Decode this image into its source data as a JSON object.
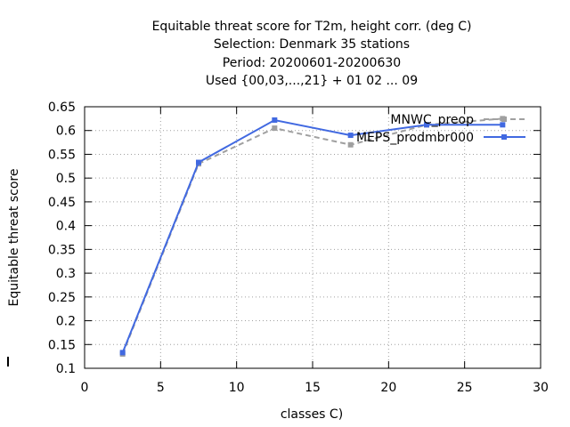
{
  "chart_data": {
    "type": "line",
    "title_lines": [
      "Equitable threat score  for T2m, height corr. (deg C)",
      "Selection: Denmark     35 stations",
      "Period: 20200601-20200630",
      "Used {00,03,...,21} + 01 02 ... 09"
    ],
    "xlabel": "classes C)",
    "ylabel": "Equitable threat score",
    "xlim": [
      0,
      30
    ],
    "ylim": [
      0.1,
      0.65
    ],
    "xticks": [
      0,
      5,
      10,
      15,
      20,
      25,
      30
    ],
    "yticks": [
      0.1,
      0.15,
      0.2,
      0.25,
      0.3,
      0.35,
      0.4,
      0.45,
      0.5,
      0.55,
      0.6,
      0.65
    ],
    "xtick_labels": [
      "0",
      "5",
      "10",
      "15",
      "20",
      "25",
      "30"
    ],
    "ytick_labels": [
      "0.1",
      "0.15",
      "0.2",
      "0.25",
      "0.3",
      "0.35",
      "0.4",
      "0.45",
      "0.5",
      "0.55",
      "0.6",
      "0.65"
    ],
    "grid": true,
    "legend_position": "top-right",
    "series": [
      {
        "name": "MNWC_preop",
        "color": "#a0a0a0",
        "dashed": true,
        "x": [
          2.5,
          7.5,
          12.5,
          17.5,
          22.5,
          27.5
        ],
        "values": [
          0.13,
          0.53,
          0.605,
          0.57,
          0.612,
          0.625
        ]
      },
      {
        "name": "MEPS_prodmbr000",
        "color": "#4169e1",
        "dashed": false,
        "x": [
          2.5,
          7.5,
          12.5,
          17.5,
          22.5,
          27.5
        ],
        "values": [
          0.133,
          0.533,
          0.622,
          0.59,
          0.612,
          0.612
        ]
      }
    ]
  }
}
